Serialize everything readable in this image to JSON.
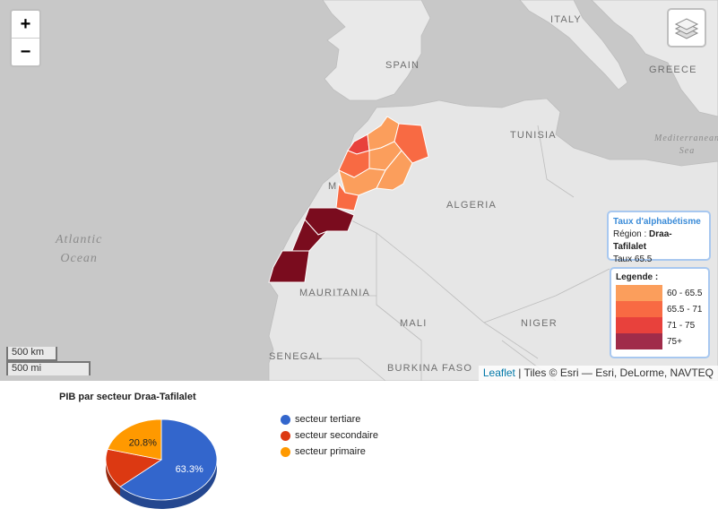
{
  "map": {
    "zoom_in": "+",
    "zoom_out": "−",
    "countries": {
      "italy": "ITALY",
      "spain": "SPAIN",
      "greece": "GREECE",
      "tunisia": "TUNISIA",
      "algeria": "ALGERIA",
      "mauritania": "MAURITANIA",
      "mali": "MALI",
      "niger": "NIGER",
      "senegal": "SENEGAL",
      "burkina": "BURKINA FASO",
      "morocco_partial": "M"
    },
    "seas": {
      "atlantic_line1": "Atlantic",
      "atlantic_line2": "Ocean",
      "med_line1": "Mediterranean",
      "med_line2": "Sea"
    },
    "scale": {
      "km": "500 km",
      "mi": "500 mi"
    },
    "attribution": {
      "link": "Leaflet",
      "text": " | Tiles © Esri — Esri, DeLorme, NAVTEQ"
    },
    "info": {
      "title": "Taux d'alphabétisme",
      "region_label": "Région : ",
      "region_value": "Draa-Tafilalet",
      "rate": "Taux 65.5"
    },
    "legend": {
      "title": "Legende :",
      "items": [
        {
          "label": "60 - 65.5",
          "color": "#fb9e5c"
        },
        {
          "label": "65.5 - 71",
          "color": "#f86a43"
        },
        {
          "label": "71 - 75",
          "color": "#e8413c"
        },
        {
          "label": "75+",
          "color": "#a02c4a"
        }
      ]
    }
  },
  "chart_data": {
    "type": "pie",
    "title": "PIB par secteur Draa-Tafilalet",
    "categories": [
      "secteur tertiare",
      "secteur secondaire",
      "secteur primaire"
    ],
    "values": [
      63.3,
      15.9,
      20.8
    ],
    "data_labels": [
      "63.3%",
      "",
      "20.8%"
    ],
    "colors": [
      "#3366cc",
      "#dc3912",
      "#ff9900"
    ],
    "legend_position": "right"
  }
}
